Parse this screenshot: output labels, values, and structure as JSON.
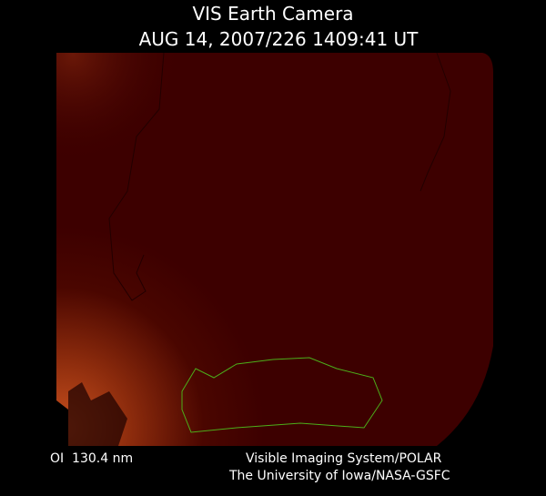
{
  "header": {
    "title": "VIS Earth Camera",
    "timestamp": "AUG 14, 2007/226 1409:41 UT"
  },
  "footer": {
    "filter": "OI  130.4 nm",
    "credit_line_1": "Visible Imaging System/POLAR",
    "credit_line_2": "The University of Iowa/NASA-GSFC"
  }
}
